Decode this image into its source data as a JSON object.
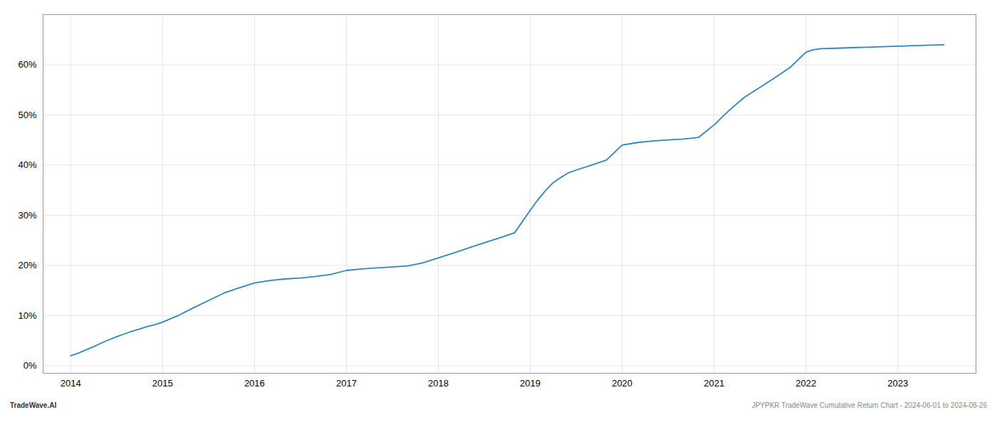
{
  "chart_data": {
    "type": "line",
    "annotations": [
      "TradeWave.AI",
      "JPYPKR TradeWave Cumulative Return Chart - 2024-06-01 to 2024-08-26"
    ],
    "color": "#2e86c1",
    "grid": true,
    "x": [
      2014.0,
      2014.08,
      2014.17,
      2014.25,
      2014.33,
      2014.42,
      2014.5,
      2014.58,
      2014.67,
      2014.75,
      2014.83,
      2014.92,
      2015.0,
      2015.17,
      2015.33,
      2015.5,
      2015.67,
      2015.83,
      2016.0,
      2016.17,
      2016.33,
      2016.5,
      2016.67,
      2016.83,
      2017.0,
      2017.17,
      2017.33,
      2017.5,
      2017.67,
      2017.83,
      2018.0,
      2018.17,
      2018.33,
      2018.5,
      2018.67,
      2018.83,
      2019.0,
      2019.08,
      2019.17,
      2019.25,
      2019.33,
      2019.42,
      2019.5,
      2019.67,
      2019.83,
      2020.0,
      2020.17,
      2020.33,
      2020.5,
      2020.67,
      2020.83,
      2021.0,
      2021.17,
      2021.33,
      2021.5,
      2021.67,
      2021.83,
      2022.0,
      2022.08,
      2022.17,
      2022.33,
      2022.5,
      2022.67,
      2022.83,
      2023.0,
      2023.17,
      2023.5
    ],
    "values": [
      2.0,
      2.5,
      3.2,
      3.8,
      4.5,
      5.2,
      5.8,
      6.3,
      6.9,
      7.3,
      7.8,
      8.2,
      8.7,
      10.0,
      11.5,
      13.0,
      14.5,
      15.5,
      16.5,
      17.0,
      17.3,
      17.5,
      17.8,
      18.2,
      19.0,
      19.3,
      19.5,
      19.7,
      19.9,
      20.5,
      21.5,
      22.5,
      23.5,
      24.5,
      25.5,
      26.5,
      31.0,
      33.0,
      35.0,
      36.5,
      37.5,
      38.5,
      39.0,
      40.0,
      41.0,
      44.0,
      44.5,
      44.8,
      45.0,
      45.2,
      45.5,
      48.0,
      51.0,
      53.5,
      55.5,
      57.5,
      59.5,
      62.5,
      63.0,
      63.2,
      63.3,
      63.4,
      63.5,
      63.6,
      63.7,
      63.8,
      64.0
    ],
    "xlim": [
      2013.7,
      2023.85
    ],
    "ylim": [
      -1.5,
      70
    ],
    "xticks": [
      2014,
      2015,
      2016,
      2017,
      2018,
      2019,
      2020,
      2021,
      2022,
      2023
    ],
    "yticks": [
      {
        "value": 0,
        "label": "0%"
      },
      {
        "value": 10,
        "label": "10%"
      },
      {
        "value": 20,
        "label": "20%"
      },
      {
        "value": 30,
        "label": "30%"
      },
      {
        "value": 40,
        "label": "40%"
      },
      {
        "value": 50,
        "label": "50%"
      },
      {
        "value": 60,
        "label": "60%"
      }
    ]
  }
}
